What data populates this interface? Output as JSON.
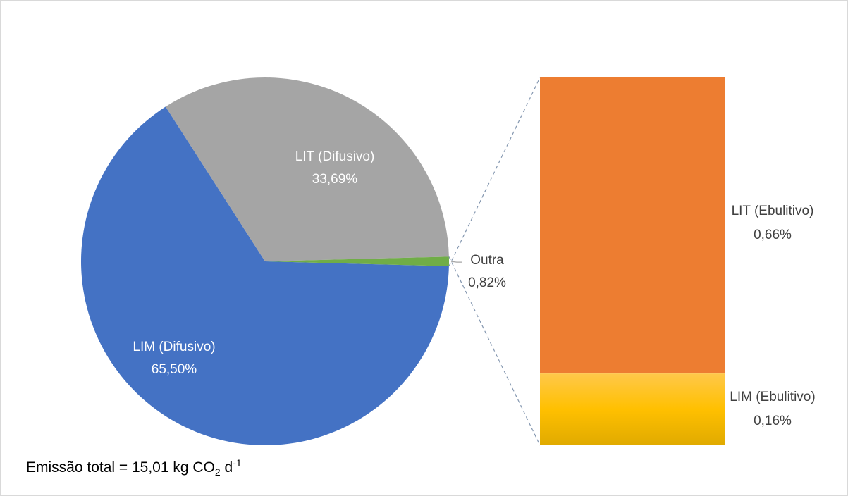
{
  "chart_data": {
    "type": "pie-of-bar",
    "pie": {
      "categories": [
        "LIM (Difusivo)",
        "LIT (Difusivo)",
        "Outra"
      ],
      "values": [
        65.5,
        33.69,
        0.82
      ],
      "value_labels": [
        "65,50%",
        "33,69%",
        "0,82%"
      ],
      "colors": [
        "#4472c4",
        "#a5a5a5",
        "#70ad47"
      ]
    },
    "bar": {
      "categories": [
        "LIT (Ebulitivo)",
        "LIM (Ebulitivo)"
      ],
      "values": [
        0.66,
        0.16
      ],
      "value_labels": [
        "0,66%",
        "0,16%"
      ],
      "colors": [
        "#ed7d31",
        "#ffc000"
      ]
    },
    "annotation": [
      "Emissão total = 15,01 kg CO",
      "2",
      " d",
      "-1"
    ]
  }
}
